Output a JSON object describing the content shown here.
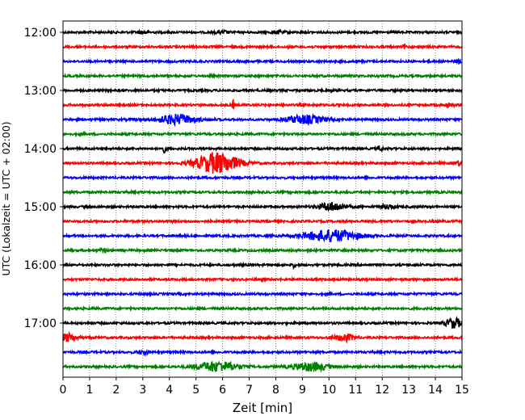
{
  "chart_data": {
    "type": "line",
    "title": "",
    "xlabel": "Zeit  [min]",
    "ylabel": "UTC (Lokalzeit = UTC + 02:00)",
    "xlim": [
      0,
      15
    ],
    "x_ticks": [
      "0",
      "1",
      "2",
      "3",
      "4",
      "5",
      "6",
      "7",
      "8",
      "9",
      "10",
      "11",
      "12",
      "13",
      "14",
      "15"
    ],
    "y_ticks": [
      "12:00",
      "13:00",
      "14:00",
      "15:00",
      "16:00",
      "17:00"
    ],
    "grid": "vertical-dotted",
    "trace_interval_min": 15,
    "trace_colors": [
      "#000000",
      "#ff0000",
      "#0000ff",
      "#008000"
    ],
    "traces": [
      {
        "start": "12:00",
        "events": [
          {
            "t": 3.0,
            "amp": 1.5,
            "dur": 0.5
          },
          {
            "t": 6.0,
            "amp": 1.5,
            "dur": 0.5
          },
          {
            "t": 8.1,
            "amp": 1.5,
            "dur": 0.5
          }
        ]
      },
      {
        "start": "12:15",
        "events": [
          {
            "t": 12.85,
            "amp": 3,
            "dur": 0.1
          }
        ]
      },
      {
        "start": "12:30",
        "events": [
          {
            "t": 14.85,
            "amp": 2,
            "dur": 0.2
          }
        ]
      },
      {
        "start": "12:45",
        "events": []
      },
      {
        "start": "13:00",
        "events": []
      },
      {
        "start": "13:15",
        "events": [
          {
            "t": 6.4,
            "amp": 5,
            "dur": 0.1
          },
          {
            "t": 14.5,
            "amp": 2,
            "dur": 0.4
          }
        ]
      },
      {
        "start": "13:30",
        "events": [
          {
            "t": 4.3,
            "amp": 6,
            "dur": 1.4
          },
          {
            "t": 9.1,
            "amp": 5,
            "dur": 1.4
          }
        ]
      },
      {
        "start": "13:45",
        "events": []
      },
      {
        "start": "14:00",
        "events": [
          {
            "t": 3.8,
            "amp": 4,
            "dur": 0.2
          },
          {
            "t": 11.9,
            "amp": 3,
            "dur": 0.2
          }
        ]
      },
      {
        "start": "14:15",
        "events": [
          {
            "t": 5.8,
            "amp": 13,
            "dur": 1.6
          },
          {
            "t": 14.9,
            "amp": 3,
            "dur": 0.3
          }
        ]
      },
      {
        "start": "14:30",
        "events": []
      },
      {
        "start": "14:45",
        "events": []
      },
      {
        "start": "15:00",
        "events": [
          {
            "t": 10.1,
            "amp": 5,
            "dur": 1.0
          },
          {
            "t": 12.2,
            "amp": 2,
            "dur": 0.6
          }
        ]
      },
      {
        "start": "15:15",
        "events": []
      },
      {
        "start": "15:30",
        "events": [
          {
            "t": 10.1,
            "amp": 7,
            "dur": 2.0
          }
        ]
      },
      {
        "start": "15:45",
        "events": [
          {
            "t": 1.5,
            "amp": 2,
            "dur": 0.3
          }
        ]
      },
      {
        "start": "16:00",
        "events": [
          {
            "t": 8.7,
            "amp": 4,
            "dur": 0.1
          }
        ]
      },
      {
        "start": "16:15",
        "events": []
      },
      {
        "start": "16:30",
        "events": []
      },
      {
        "start": "16:45",
        "events": []
      },
      {
        "start": "17:00",
        "events": [
          {
            "t": 14.7,
            "amp": 6,
            "dur": 0.6
          }
        ]
      },
      {
        "start": "17:15",
        "events": [
          {
            "t": 0.2,
            "amp": 5,
            "dur": 0.6
          },
          {
            "t": 10.6,
            "amp": 4,
            "dur": 0.8
          }
        ]
      },
      {
        "start": "17:30",
        "events": [
          {
            "t": 3.0,
            "amp": 2,
            "dur": 0.5
          }
        ]
      },
      {
        "start": "17:45",
        "events": [
          {
            "t": 5.8,
            "amp": 6,
            "dur": 1.6
          },
          {
            "t": 9.3,
            "amp": 5,
            "dur": 1.4
          }
        ]
      }
    ]
  }
}
